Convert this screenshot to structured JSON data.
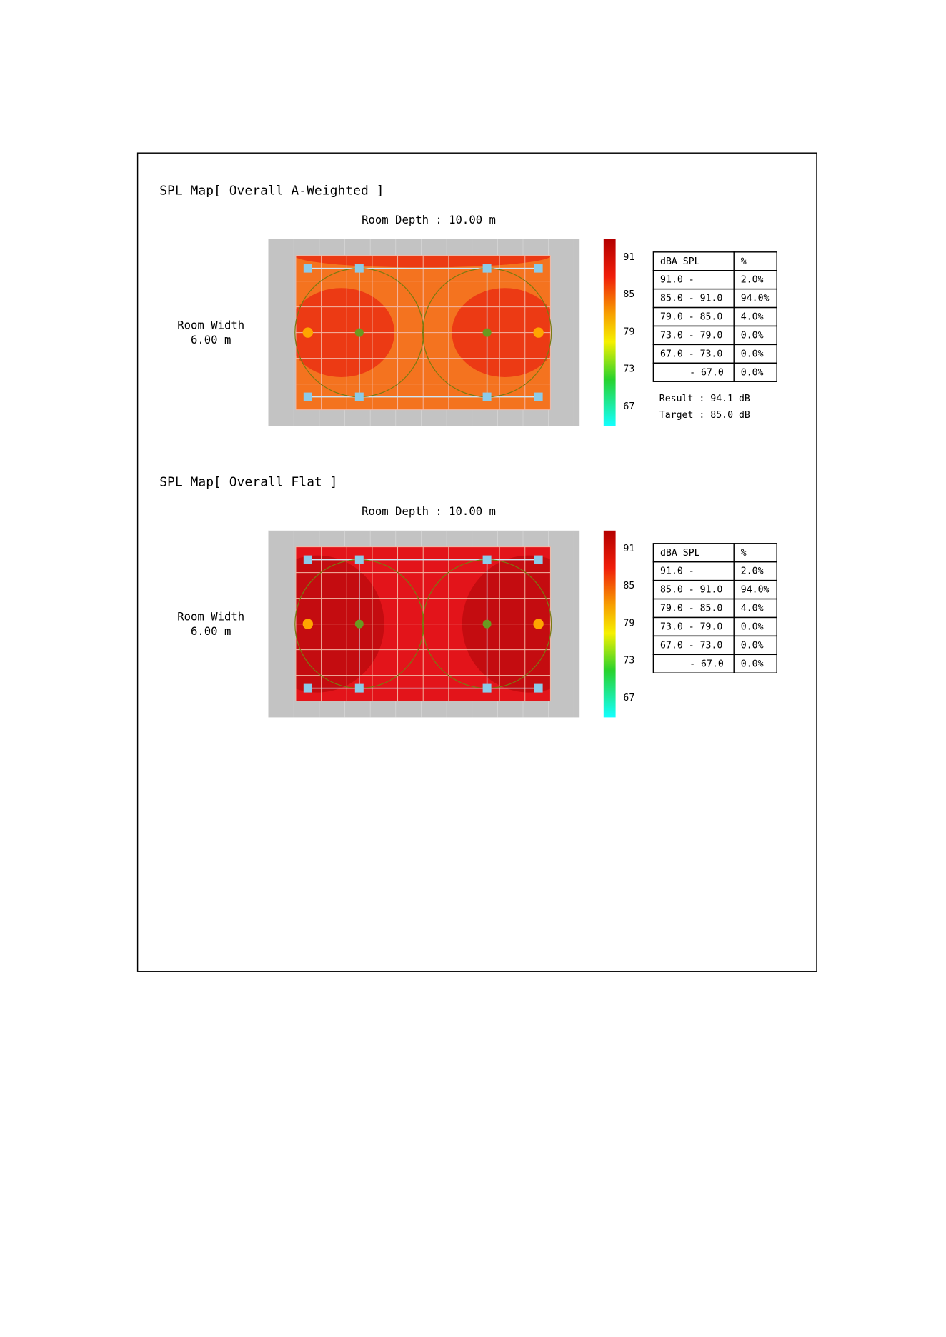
{
  "maps": [
    {
      "title": "SPL Map[ Overall A-Weighted ]",
      "depth_label": "Room Depth : 10.00 m",
      "width_label": [
        "Room Width",
        "6.00 m"
      ],
      "scale_labels": [
        "91",
        "85",
        "79",
        "73",
        "67"
      ],
      "floor_color": "#f4731f",
      "hot_color": "#ec3a14",
      "table": {
        "header": [
          "dBA SPL",
          "%"
        ],
        "rows": [
          [
            "91.0 -",
            "2.0%"
          ],
          [
            "85.0 - 91.0",
            "94.0%"
          ],
          [
            "79.0 - 85.0",
            "4.0%"
          ],
          [
            "73.0 - 79.0",
            "0.0%"
          ],
          [
            "67.0 - 73.0",
            "0.0%"
          ],
          [
            "- 67.0",
            "0.0%"
          ]
        ]
      },
      "result": "Result : 94.1 dB",
      "target": "Target : 85.0 dB"
    },
    {
      "title": "SPL Map[ Overall Flat ]",
      "depth_label": "Room Depth : 10.00 m",
      "width_label": [
        "Room Width",
        "6.00 m"
      ],
      "scale_labels": [
        "91",
        "85",
        "79",
        "73",
        "67"
      ],
      "floor_color": "#e3141a",
      "hot_color": "#c40c10",
      "table": {
        "header": [
          "dBA SPL",
          "%"
        ],
        "rows": [
          [
            "91.0 -",
            "2.0%"
          ],
          [
            "85.0 - 91.0",
            "94.0%"
          ],
          [
            "79.0 - 85.0",
            "4.0%"
          ],
          [
            "73.0 - 79.0",
            "0.0%"
          ],
          [
            "67.0 - 73.0",
            "0.0%"
          ],
          [
            "- 67.0",
            "0.0%"
          ]
        ]
      }
    }
  ]
}
